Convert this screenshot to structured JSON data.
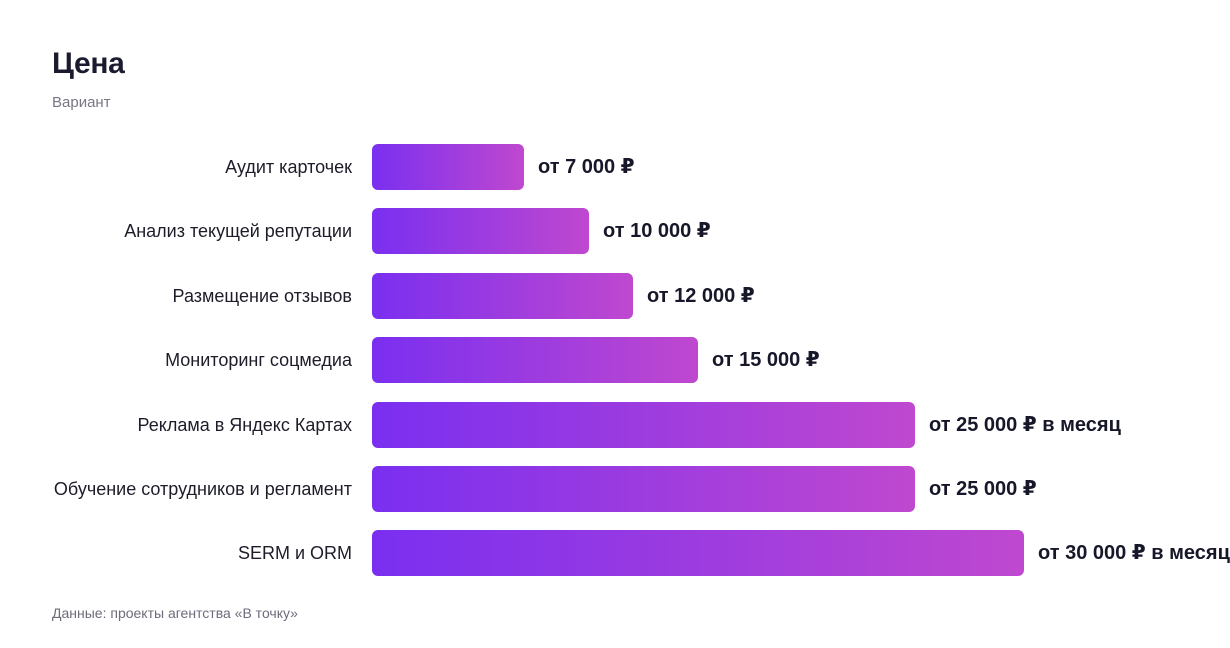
{
  "chart_data": {
    "type": "bar",
    "orientation": "horizontal",
    "title": "Цена",
    "subtitle": "Вариант",
    "source": "Данные: проекты агентства «В точку»",
    "categories": [
      "Аудит карточек",
      "Анализ текущей репутации",
      "Размещение отзывов",
      "Мониторинг соцмедиа",
      "Реклама в Яндекс Картах",
      "Обучение сотрудников и регламент",
      "SERM и ORM"
    ],
    "values": [
      7000,
      10000,
      12000,
      15000,
      25000,
      25000,
      30000
    ],
    "value_labels": [
      "от 7 000 ₽",
      "от 10 000 ₽",
      "от 12 000 ₽",
      "от 15 000 ₽",
      "от 25 000 ₽ в месяц",
      "от 25 000 ₽",
      "от 30 000 ₽ в месяц"
    ],
    "xlim": [
      0,
      30000
    ],
    "grid": false,
    "legend": "none",
    "colors": {
      "bar_start": "#7a2ff0",
      "bar_end": "#bf48cf"
    }
  }
}
